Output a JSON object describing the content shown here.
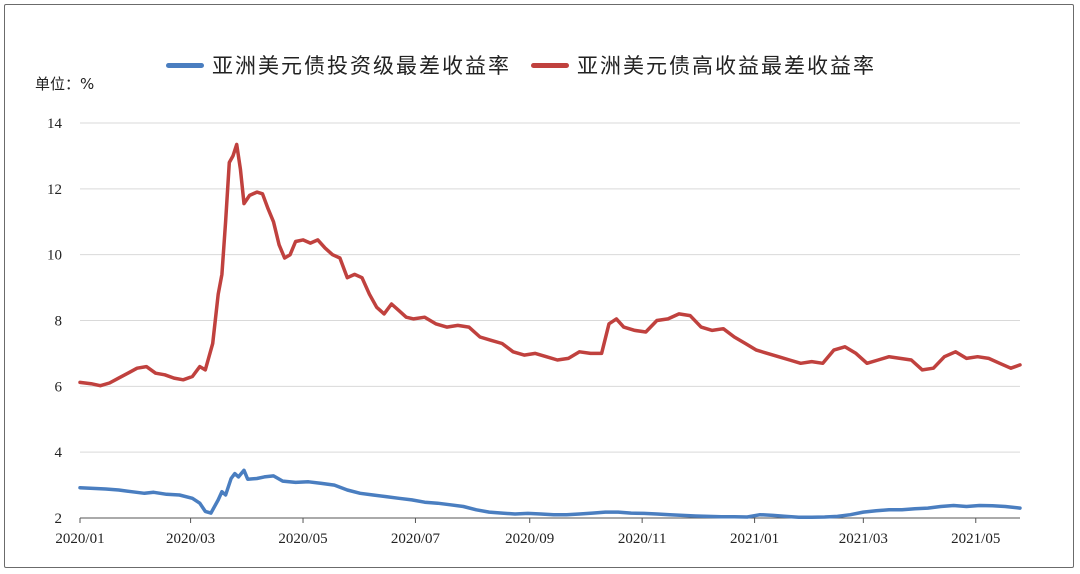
{
  "legend": {
    "series0": "亚洲美元债投资级最差收益率",
    "series1": "亚洲美元债高收益最差收益率"
  },
  "unit_label": "单位：%",
  "colors": {
    "series0": "#4a7ec0",
    "series1": "#c0413e",
    "grid": "#d9d9d9",
    "axis": "#555555"
  },
  "chart_data": {
    "type": "line",
    "title": "",
    "xlabel": "",
    "ylabel": "单位：%",
    "ylim": [
      2,
      14
    ],
    "yticks": [
      2,
      4,
      6,
      8,
      10,
      12,
      14
    ],
    "xlim": [
      "2020-01-01",
      "2021-05-25"
    ],
    "xticks": [
      {
        "date": "2020-01-01",
        "label": "2020/01"
      },
      {
        "date": "2020-03-01",
        "label": "2020/03"
      },
      {
        "date": "2020-05-01",
        "label": "2020/05"
      },
      {
        "date": "2020-07-01",
        "label": "2020/07"
      },
      {
        "date": "2020-09-01",
        "label": "2020/09"
      },
      {
        "date": "2020-11-01",
        "label": "2020/11"
      },
      {
        "date": "2021-01-01",
        "label": "2021/01"
      },
      {
        "date": "2021-03-01",
        "label": "2021/03"
      },
      {
        "date": "2021-05-01",
        "label": "2021/05"
      }
    ],
    "grid": true,
    "legend_position": "top",
    "series": [
      {
        "name": "亚洲美元债投资级最差收益率",
        "points": [
          [
            "2020-01-01",
            2.92
          ],
          [
            "2020-01-08",
            2.9
          ],
          [
            "2020-01-15",
            2.88
          ],
          [
            "2020-01-22",
            2.85
          ],
          [
            "2020-01-29",
            2.8
          ],
          [
            "2020-02-05",
            2.75
          ],
          [
            "2020-02-10",
            2.78
          ],
          [
            "2020-02-17",
            2.72
          ],
          [
            "2020-02-24",
            2.7
          ],
          [
            "2020-03-02",
            2.6
          ],
          [
            "2020-03-06",
            2.45
          ],
          [
            "2020-03-09",
            2.2
          ],
          [
            "2020-03-12",
            2.15
          ],
          [
            "2020-03-16",
            2.55
          ],
          [
            "2020-03-18",
            2.8
          ],
          [
            "2020-03-20",
            2.7
          ],
          [
            "2020-03-23",
            3.2
          ],
          [
            "2020-03-25",
            3.35
          ],
          [
            "2020-03-27",
            3.25
          ],
          [
            "2020-03-30",
            3.45
          ],
          [
            "2020-04-01",
            3.18
          ],
          [
            "2020-04-06",
            3.2
          ],
          [
            "2020-04-10",
            3.25
          ],
          [
            "2020-04-15",
            3.28
          ],
          [
            "2020-04-20",
            3.12
          ],
          [
            "2020-04-27",
            3.08
          ],
          [
            "2020-05-04",
            3.1
          ],
          [
            "2020-05-11",
            3.05
          ],
          [
            "2020-05-18",
            3.0
          ],
          [
            "2020-05-25",
            2.85
          ],
          [
            "2020-06-01",
            2.75
          ],
          [
            "2020-06-08",
            2.7
          ],
          [
            "2020-06-15",
            2.65
          ],
          [
            "2020-06-22",
            2.6
          ],
          [
            "2020-06-29",
            2.55
          ],
          [
            "2020-07-06",
            2.48
          ],
          [
            "2020-07-13",
            2.45
          ],
          [
            "2020-07-20",
            2.4
          ],
          [
            "2020-07-27",
            2.35
          ],
          [
            "2020-08-03",
            2.25
          ],
          [
            "2020-08-10",
            2.18
          ],
          [
            "2020-08-17",
            2.15
          ],
          [
            "2020-08-24",
            2.12
          ],
          [
            "2020-08-31",
            2.14
          ],
          [
            "2020-09-07",
            2.12
          ],
          [
            "2020-09-14",
            2.1
          ],
          [
            "2020-09-21",
            2.1
          ],
          [
            "2020-09-28",
            2.12
          ],
          [
            "2020-10-05",
            2.15
          ],
          [
            "2020-10-12",
            2.18
          ],
          [
            "2020-10-19",
            2.18
          ],
          [
            "2020-10-26",
            2.15
          ],
          [
            "2020-11-02",
            2.14
          ],
          [
            "2020-11-09",
            2.12
          ],
          [
            "2020-11-16",
            2.1
          ],
          [
            "2020-11-23",
            2.08
          ],
          [
            "2020-11-30",
            2.06
          ],
          [
            "2020-12-07",
            2.05
          ],
          [
            "2020-12-14",
            2.04
          ],
          [
            "2020-12-21",
            2.04
          ],
          [
            "2020-12-28",
            2.03
          ],
          [
            "2021-01-04",
            2.1
          ],
          [
            "2021-01-11",
            2.08
          ],
          [
            "2021-01-18",
            2.05
          ],
          [
            "2021-01-25",
            2.02
          ],
          [
            "2021-02-01",
            2.02
          ],
          [
            "2021-02-08",
            2.03
          ],
          [
            "2021-02-15",
            2.05
          ],
          [
            "2021-02-22",
            2.1
          ],
          [
            "2021-03-01",
            2.18
          ],
          [
            "2021-03-08",
            2.22
          ],
          [
            "2021-03-15",
            2.25
          ],
          [
            "2021-03-22",
            2.25
          ],
          [
            "2021-03-29",
            2.28
          ],
          [
            "2021-04-05",
            2.3
          ],
          [
            "2021-04-12",
            2.35
          ],
          [
            "2021-04-19",
            2.38
          ],
          [
            "2021-04-26",
            2.35
          ],
          [
            "2021-05-03",
            2.38
          ],
          [
            "2021-05-10",
            2.37
          ],
          [
            "2021-05-17",
            2.35
          ],
          [
            "2021-05-25",
            2.3
          ]
        ]
      },
      {
        "name": "亚洲美元债高收益最差收益率",
        "points": [
          [
            "2020-01-01",
            6.12
          ],
          [
            "2020-01-07",
            6.08
          ],
          [
            "2020-01-12",
            6.02
          ],
          [
            "2020-01-17",
            6.1
          ],
          [
            "2020-01-22",
            6.25
          ],
          [
            "2020-01-27",
            6.4
          ],
          [
            "2020-02-01",
            6.55
          ],
          [
            "2020-02-06",
            6.6
          ],
          [
            "2020-02-11",
            6.4
          ],
          [
            "2020-02-16",
            6.35
          ],
          [
            "2020-02-21",
            6.25
          ],
          [
            "2020-02-26",
            6.2
          ],
          [
            "2020-03-02",
            6.3
          ],
          [
            "2020-03-06",
            6.6
          ],
          [
            "2020-03-09",
            6.5
          ],
          [
            "2020-03-11",
            6.9
          ],
          [
            "2020-03-13",
            7.3
          ],
          [
            "2020-03-16",
            8.8
          ],
          [
            "2020-03-18",
            9.4
          ],
          [
            "2020-03-20",
            11.0
          ],
          [
            "2020-03-22",
            12.8
          ],
          [
            "2020-03-24",
            13.0
          ],
          [
            "2020-03-26",
            13.35
          ],
          [
            "2020-03-28",
            12.6
          ],
          [
            "2020-03-30",
            11.55
          ],
          [
            "2020-04-02",
            11.8
          ],
          [
            "2020-04-06",
            11.9
          ],
          [
            "2020-04-09",
            11.85
          ],
          [
            "2020-04-12",
            11.4
          ],
          [
            "2020-04-15",
            11.0
          ],
          [
            "2020-04-18",
            10.3
          ],
          [
            "2020-04-21",
            9.9
          ],
          [
            "2020-04-24",
            10.0
          ],
          [
            "2020-04-27",
            10.4
          ],
          [
            "2020-05-01",
            10.45
          ],
          [
            "2020-05-05",
            10.35
          ],
          [
            "2020-05-09",
            10.45
          ],
          [
            "2020-05-13",
            10.2
          ],
          [
            "2020-05-17",
            10.0
          ],
          [
            "2020-05-21",
            9.9
          ],
          [
            "2020-05-25",
            9.3
          ],
          [
            "2020-05-29",
            9.4
          ],
          [
            "2020-06-02",
            9.3
          ],
          [
            "2020-06-06",
            8.8
          ],
          [
            "2020-06-10",
            8.4
          ],
          [
            "2020-06-14",
            8.2
          ],
          [
            "2020-06-18",
            8.5
          ],
          [
            "2020-06-22",
            8.3
          ],
          [
            "2020-06-26",
            8.1
          ],
          [
            "2020-06-30",
            8.05
          ],
          [
            "2020-07-06",
            8.1
          ],
          [
            "2020-07-12",
            7.9
          ],
          [
            "2020-07-18",
            7.8
          ],
          [
            "2020-07-24",
            7.85
          ],
          [
            "2020-07-30",
            7.8
          ],
          [
            "2020-08-05",
            7.5
          ],
          [
            "2020-08-11",
            7.4
          ],
          [
            "2020-08-17",
            7.3
          ],
          [
            "2020-08-23",
            7.05
          ],
          [
            "2020-08-29",
            6.95
          ],
          [
            "2020-09-04",
            7.0
          ],
          [
            "2020-09-10",
            6.9
          ],
          [
            "2020-09-16",
            6.8
          ],
          [
            "2020-09-22",
            6.85
          ],
          [
            "2020-09-28",
            7.05
          ],
          [
            "2020-10-04",
            7.0
          ],
          [
            "2020-10-10",
            7.0
          ],
          [
            "2020-10-14",
            7.9
          ],
          [
            "2020-10-18",
            8.05
          ],
          [
            "2020-10-22",
            7.8
          ],
          [
            "2020-10-28",
            7.7
          ],
          [
            "2020-11-03",
            7.65
          ],
          [
            "2020-11-09",
            8.0
          ],
          [
            "2020-11-15",
            8.05
          ],
          [
            "2020-11-21",
            8.2
          ],
          [
            "2020-11-27",
            8.15
          ],
          [
            "2020-12-03",
            7.8
          ],
          [
            "2020-12-09",
            7.7
          ],
          [
            "2020-12-15",
            7.75
          ],
          [
            "2020-12-21",
            7.5
          ],
          [
            "2020-12-27",
            7.3
          ],
          [
            "2021-01-02",
            7.1
          ],
          [
            "2021-01-08",
            7.0
          ],
          [
            "2021-01-14",
            6.9
          ],
          [
            "2021-01-20",
            6.8
          ],
          [
            "2021-01-26",
            6.7
          ],
          [
            "2021-02-01",
            6.75
          ],
          [
            "2021-02-07",
            6.7
          ],
          [
            "2021-02-13",
            7.1
          ],
          [
            "2021-02-19",
            7.2
          ],
          [
            "2021-02-25",
            7.0
          ],
          [
            "2021-03-03",
            6.7
          ],
          [
            "2021-03-09",
            6.8
          ],
          [
            "2021-03-15",
            6.9
          ],
          [
            "2021-03-21",
            6.85
          ],
          [
            "2021-03-27",
            6.8
          ],
          [
            "2021-04-02",
            6.5
          ],
          [
            "2021-04-08",
            6.55
          ],
          [
            "2021-04-14",
            6.9
          ],
          [
            "2021-04-20",
            7.05
          ],
          [
            "2021-04-26",
            6.85
          ],
          [
            "2021-05-02",
            6.9
          ],
          [
            "2021-05-08",
            6.85
          ],
          [
            "2021-05-14",
            6.7
          ],
          [
            "2021-05-20",
            6.55
          ],
          [
            "2021-05-25",
            6.65
          ]
        ]
      }
    ]
  }
}
